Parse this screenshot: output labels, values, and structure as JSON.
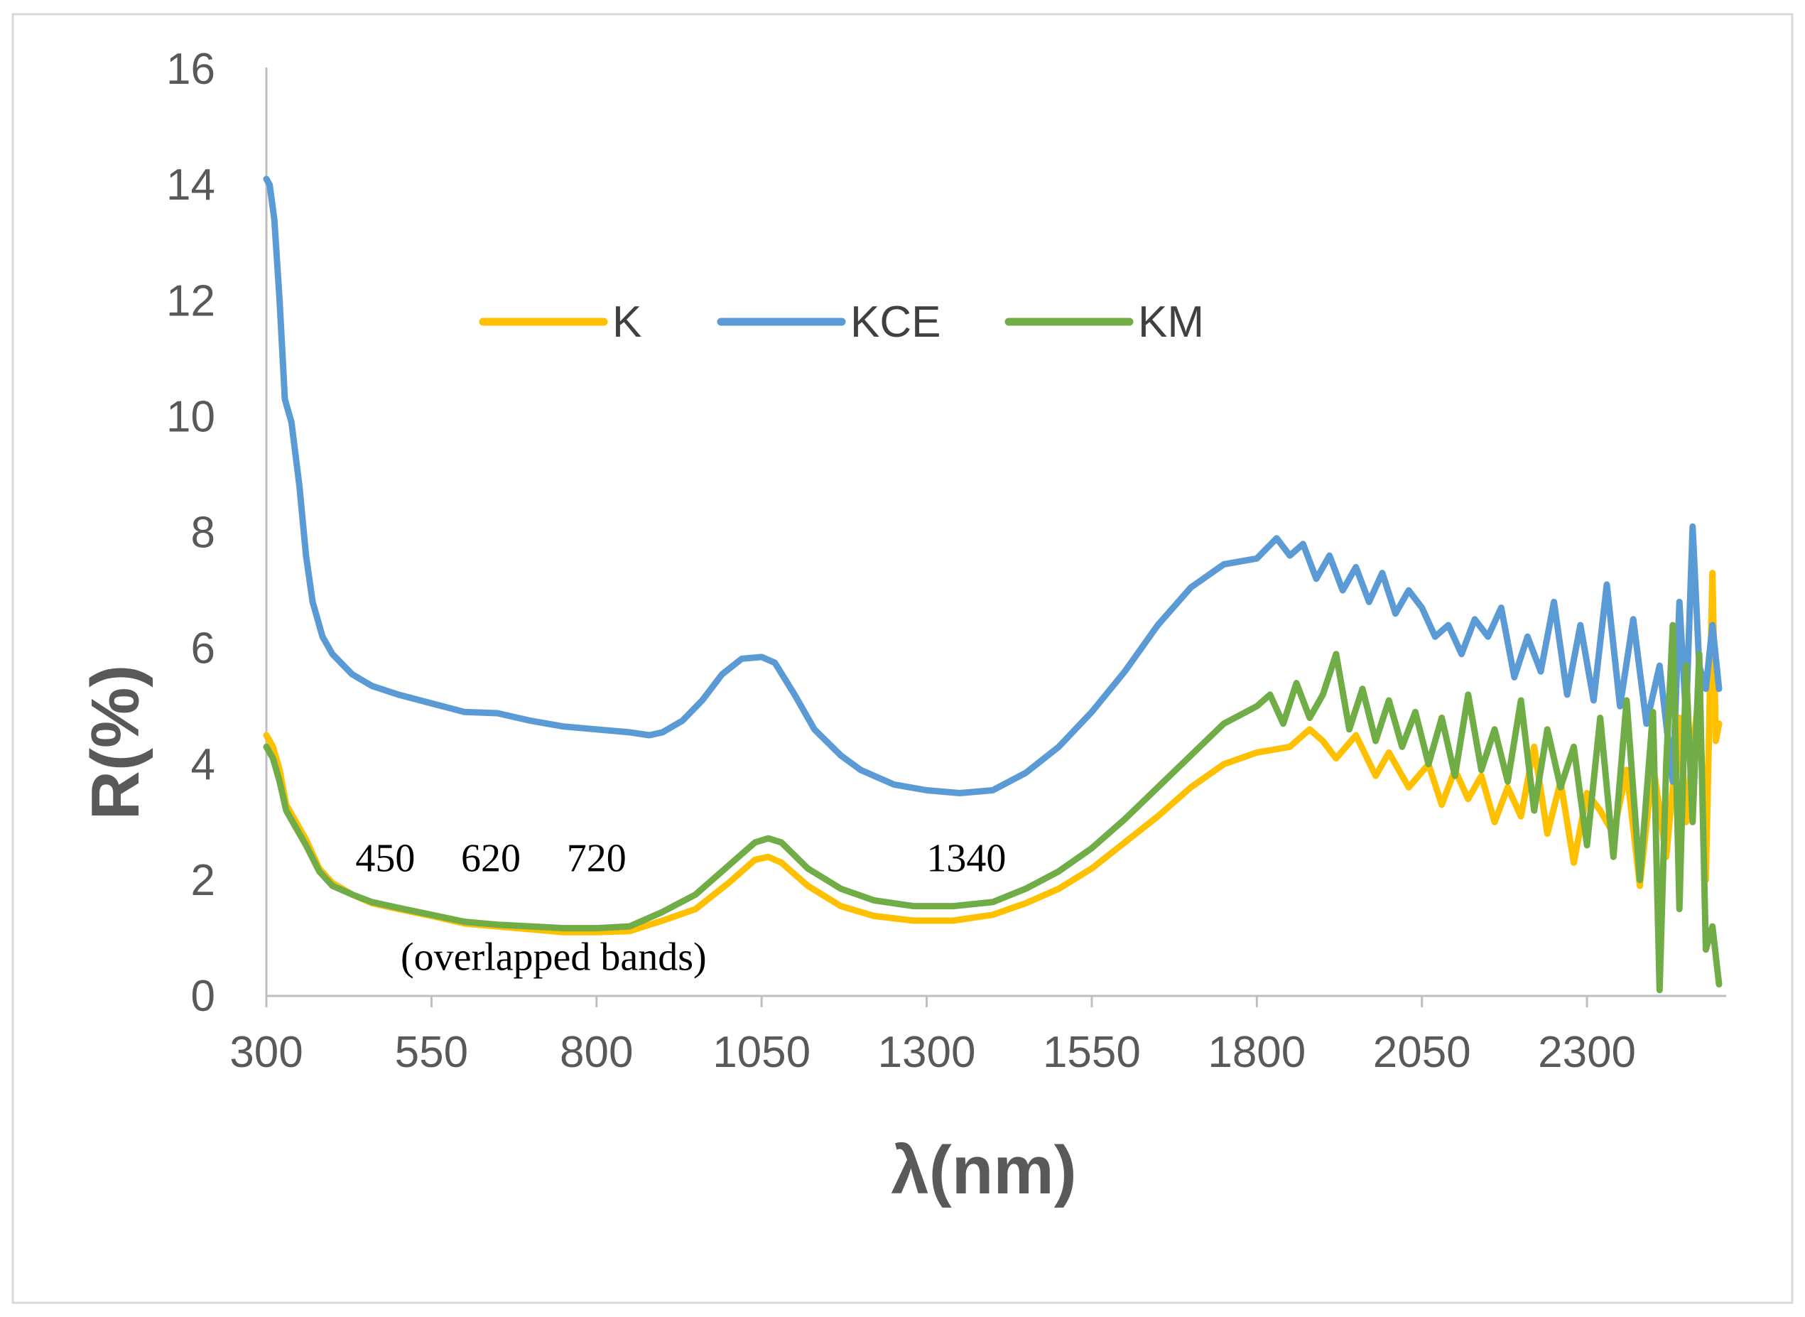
{
  "chart_data": {
    "type": "line",
    "title": "",
    "xlabel": "λ(nm)",
    "ylabel": "R(%)",
    "xlim": [
      300,
      2500
    ],
    "ylim": [
      0,
      16
    ],
    "xticks": [
      300,
      550,
      800,
      1050,
      1300,
      1550,
      1800,
      2050,
      2300
    ],
    "yticks": [
      0,
      2,
      4,
      6,
      8,
      10,
      12,
      14,
      16
    ],
    "grid": false,
    "legend_position": "top-center",
    "series": [
      {
        "name": "K",
        "color": "#FFC000",
        "points": [
          [
            300,
            4.5
          ],
          [
            310,
            4.3
          ],
          [
            320,
            3.9
          ],
          [
            330,
            3.3
          ],
          [
            345,
            3.0
          ],
          [
            360,
            2.7
          ],
          [
            380,
            2.2
          ],
          [
            400,
            1.95
          ],
          [
            430,
            1.75
          ],
          [
            460,
            1.6
          ],
          [
            500,
            1.5
          ],
          [
            550,
            1.38
          ],
          [
            600,
            1.25
          ],
          [
            650,
            1.2
          ],
          [
            700,
            1.15
          ],
          [
            750,
            1.1
          ],
          [
            800,
            1.1
          ],
          [
            850,
            1.12
          ],
          [
            900,
            1.3
          ],
          [
            950,
            1.5
          ],
          [
            1000,
            1.95
          ],
          [
            1040,
            2.35
          ],
          [
            1060,
            2.4
          ],
          [
            1080,
            2.3
          ],
          [
            1120,
            1.9
          ],
          [
            1170,
            1.55
          ],
          [
            1220,
            1.38
          ],
          [
            1280,
            1.3
          ],
          [
            1340,
            1.3
          ],
          [
            1400,
            1.4
          ],
          [
            1450,
            1.6
          ],
          [
            1500,
            1.85
          ],
          [
            1550,
            2.2
          ],
          [
            1600,
            2.65
          ],
          [
            1650,
            3.1
          ],
          [
            1700,
            3.6
          ],
          [
            1750,
            4.0
          ],
          [
            1800,
            4.2
          ],
          [
            1850,
            4.3
          ],
          [
            1880,
            4.6
          ],
          [
            1900,
            4.4
          ],
          [
            1920,
            4.1
          ],
          [
            1950,
            4.5
          ],
          [
            1980,
            3.8
          ],
          [
            2000,
            4.2
          ],
          [
            2030,
            3.6
          ],
          [
            2060,
            4.0
          ],
          [
            2080,
            3.3
          ],
          [
            2100,
            3.9
          ],
          [
            2120,
            3.4
          ],
          [
            2140,
            3.8
          ],
          [
            2160,
            3.0
          ],
          [
            2180,
            3.6
          ],
          [
            2200,
            3.1
          ],
          [
            2220,
            4.3
          ],
          [
            2240,
            2.8
          ],
          [
            2260,
            3.7
          ],
          [
            2280,
            2.3
          ],
          [
            2300,
            3.5
          ],
          [
            2320,
            3.2
          ],
          [
            2340,
            2.8
          ],
          [
            2360,
            3.9
          ],
          [
            2380,
            1.9
          ],
          [
            2400,
            4.0
          ],
          [
            2420,
            2.4
          ],
          [
            2440,
            4.8
          ],
          [
            2450,
            3.0
          ],
          [
            2460,
            4.2
          ],
          [
            2470,
            5.3
          ],
          [
            2480,
            2.0
          ],
          [
            2490,
            7.3
          ],
          [
            2495,
            4.4
          ],
          [
            2500,
            4.7
          ]
        ]
      },
      {
        "name": "KCE",
        "color": "#5B9BD5",
        "points": [
          [
            300,
            14.1
          ],
          [
            305,
            14.0
          ],
          [
            312,
            13.4
          ],
          [
            320,
            12.0
          ],
          [
            328,
            10.3
          ],
          [
            338,
            9.9
          ],
          [
            350,
            8.8
          ],
          [
            360,
            7.6
          ],
          [
            370,
            6.8
          ],
          [
            385,
            6.2
          ],
          [
            400,
            5.9
          ],
          [
            430,
            5.55
          ],
          [
            460,
            5.35
          ],
          [
            500,
            5.2
          ],
          [
            550,
            5.05
          ],
          [
            600,
            4.9
          ],
          [
            650,
            4.88
          ],
          [
            700,
            4.75
          ],
          [
            750,
            4.65
          ],
          [
            800,
            4.6
          ],
          [
            850,
            4.55
          ],
          [
            880,
            4.5
          ],
          [
            900,
            4.55
          ],
          [
            930,
            4.75
          ],
          [
            960,
            5.1
          ],
          [
            990,
            5.55
          ],
          [
            1020,
            5.82
          ],
          [
            1050,
            5.85
          ],
          [
            1070,
            5.75
          ],
          [
            1100,
            5.2
          ],
          [
            1130,
            4.6
          ],
          [
            1170,
            4.15
          ],
          [
            1200,
            3.9
          ],
          [
            1250,
            3.65
          ],
          [
            1300,
            3.55
          ],
          [
            1350,
            3.5
          ],
          [
            1400,
            3.55
          ],
          [
            1450,
            3.85
          ],
          [
            1500,
            4.3
          ],
          [
            1550,
            4.9
          ],
          [
            1600,
            5.6
          ],
          [
            1650,
            6.4
          ],
          [
            1700,
            7.05
          ],
          [
            1750,
            7.45
          ],
          [
            1800,
            7.55
          ],
          [
            1830,
            7.9
          ],
          [
            1850,
            7.6
          ],
          [
            1870,
            7.8
          ],
          [
            1890,
            7.2
          ],
          [
            1910,
            7.6
          ],
          [
            1930,
            7.0
          ],
          [
            1950,
            7.4
          ],
          [
            1970,
            6.8
          ],
          [
            1990,
            7.3
          ],
          [
            2010,
            6.6
          ],
          [
            2030,
            7.0
          ],
          [
            2050,
            6.7
          ],
          [
            2070,
            6.2
          ],
          [
            2090,
            6.4
          ],
          [
            2110,
            5.9
          ],
          [
            2130,
            6.5
          ],
          [
            2150,
            6.2
          ],
          [
            2170,
            6.7
          ],
          [
            2190,
            5.5
          ],
          [
            2210,
            6.2
          ],
          [
            2230,
            5.6
          ],
          [
            2250,
            6.8
          ],
          [
            2270,
            5.2
          ],
          [
            2290,
            6.4
          ],
          [
            2310,
            5.1
          ],
          [
            2330,
            7.1
          ],
          [
            2350,
            5.0
          ],
          [
            2370,
            6.5
          ],
          [
            2390,
            4.7
          ],
          [
            2410,
            5.7
          ],
          [
            2430,
            3.7
          ],
          [
            2440,
            6.8
          ],
          [
            2450,
            4.8
          ],
          [
            2460,
            8.1
          ],
          [
            2470,
            5.7
          ],
          [
            2480,
            5.3
          ],
          [
            2490,
            6.4
          ],
          [
            2500,
            5.3
          ]
        ]
      },
      {
        "name": "KM",
        "color": "#70AD47",
        "points": [
          [
            300,
            4.3
          ],
          [
            310,
            4.1
          ],
          [
            320,
            3.7
          ],
          [
            330,
            3.2
          ],
          [
            345,
            2.9
          ],
          [
            360,
            2.6
          ],
          [
            380,
            2.15
          ],
          [
            400,
            1.9
          ],
          [
            430,
            1.75
          ],
          [
            460,
            1.62
          ],
          [
            500,
            1.52
          ],
          [
            550,
            1.4
          ],
          [
            600,
            1.28
          ],
          [
            650,
            1.23
          ],
          [
            700,
            1.2
          ],
          [
            750,
            1.17
          ],
          [
            800,
            1.17
          ],
          [
            850,
            1.2
          ],
          [
            900,
            1.45
          ],
          [
            950,
            1.75
          ],
          [
            1000,
            2.25
          ],
          [
            1040,
            2.65
          ],
          [
            1060,
            2.72
          ],
          [
            1080,
            2.65
          ],
          [
            1120,
            2.2
          ],
          [
            1170,
            1.85
          ],
          [
            1220,
            1.65
          ],
          [
            1280,
            1.55
          ],
          [
            1340,
            1.55
          ],
          [
            1400,
            1.62
          ],
          [
            1450,
            1.85
          ],
          [
            1500,
            2.15
          ],
          [
            1550,
            2.55
          ],
          [
            1600,
            3.05
          ],
          [
            1650,
            3.6
          ],
          [
            1700,
            4.15
          ],
          [
            1750,
            4.7
          ],
          [
            1800,
            5.0
          ],
          [
            1820,
            5.2
          ],
          [
            1840,
            4.7
          ],
          [
            1860,
            5.4
          ],
          [
            1880,
            4.8
          ],
          [
            1900,
            5.2
          ],
          [
            1920,
            5.9
          ],
          [
            1940,
            4.6
          ],
          [
            1960,
            5.3
          ],
          [
            1980,
            4.4
          ],
          [
            2000,
            5.1
          ],
          [
            2020,
            4.3
          ],
          [
            2040,
            4.9
          ],
          [
            2060,
            4.0
          ],
          [
            2080,
            4.8
          ],
          [
            2100,
            3.8
          ],
          [
            2120,
            5.2
          ],
          [
            2140,
            3.9
          ],
          [
            2160,
            4.6
          ],
          [
            2180,
            3.7
          ],
          [
            2200,
            5.1
          ],
          [
            2220,
            3.2
          ],
          [
            2240,
            4.6
          ],
          [
            2260,
            3.6
          ],
          [
            2280,
            4.3
          ],
          [
            2300,
            2.6
          ],
          [
            2320,
            4.8
          ],
          [
            2340,
            2.4
          ],
          [
            2360,
            5.1
          ],
          [
            2380,
            2.0
          ],
          [
            2400,
            4.9
          ],
          [
            2410,
            0.1
          ],
          [
            2420,
            4.0
          ],
          [
            2430,
            6.4
          ],
          [
            2440,
            1.5
          ],
          [
            2450,
            5.7
          ],
          [
            2460,
            3.0
          ],
          [
            2470,
            5.9
          ],
          [
            2480,
            0.8
          ],
          [
            2490,
            1.2
          ],
          [
            2500,
            0.2
          ]
        ]
      }
    ],
    "annotations": [
      {
        "text": "450",
        "x": 480,
        "y": 2.15
      },
      {
        "text": "620",
        "x": 640,
        "y": 2.15
      },
      {
        "text": "720",
        "x": 800,
        "y": 2.15
      },
      {
        "text": "1340",
        "x": 1360,
        "y": 2.15
      },
      {
        "text": "(overlapped bands)",
        "x": 735,
        "y": 0.45
      }
    ]
  }
}
